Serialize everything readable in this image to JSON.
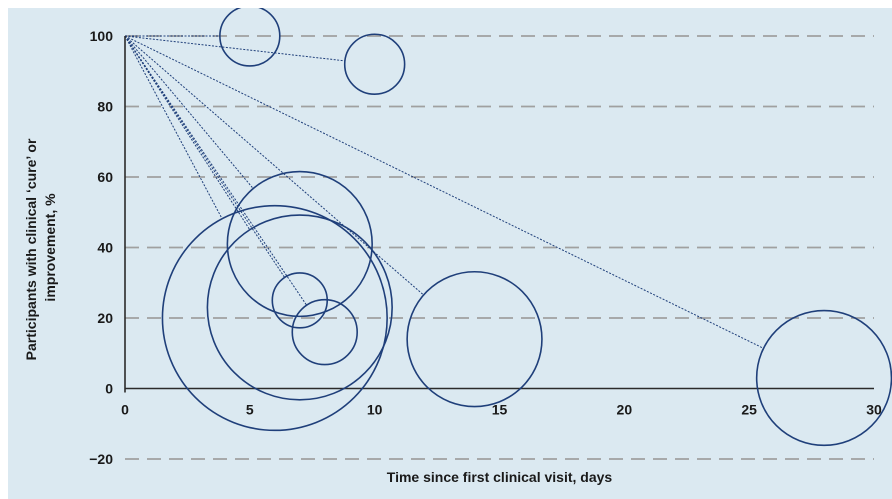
{
  "chart_data": {
    "type": "scatter",
    "title": "",
    "xlabel": "Time since first clinical visit, days",
    "ylabel_line1": "Participants with clinical ‘cure’ or",
    "ylabel_line2": "improvement, %",
    "xlim": [
      0,
      30
    ],
    "ylim": [
      -20,
      100
    ],
    "xticks": [
      0,
      5,
      10,
      15,
      20,
      25,
      30
    ],
    "yticks": [
      -20,
      0,
      20,
      40,
      60,
      80,
      100
    ],
    "grid": "horizontal dashed",
    "origin": {
      "x": 0,
      "y": 100
    },
    "colors": {
      "bubble": "#1f3f7a",
      "connector": "#1f3f7a",
      "grid": "#a0a0a0",
      "background": "#dbe9f1"
    },
    "points": [
      {
        "x": 5,
        "y": 100,
        "r": 1.2
      },
      {
        "x": 10,
        "y": 92,
        "r": 1.2
      },
      {
        "x": 7,
        "y": 41,
        "r": 2.9
      },
      {
        "x": 6,
        "y": 20,
        "r": 4.5
      },
      {
        "x": 7,
        "y": 23,
        "r": 3.7
      },
      {
        "x": 7,
        "y": 25,
        "r": 1.1
      },
      {
        "x": 8,
        "y": 16,
        "r": 1.3
      },
      {
        "x": 14,
        "y": 14,
        "r": 2.7
      },
      {
        "x": 28,
        "y": 3,
        "r": 2.7
      }
    ]
  }
}
